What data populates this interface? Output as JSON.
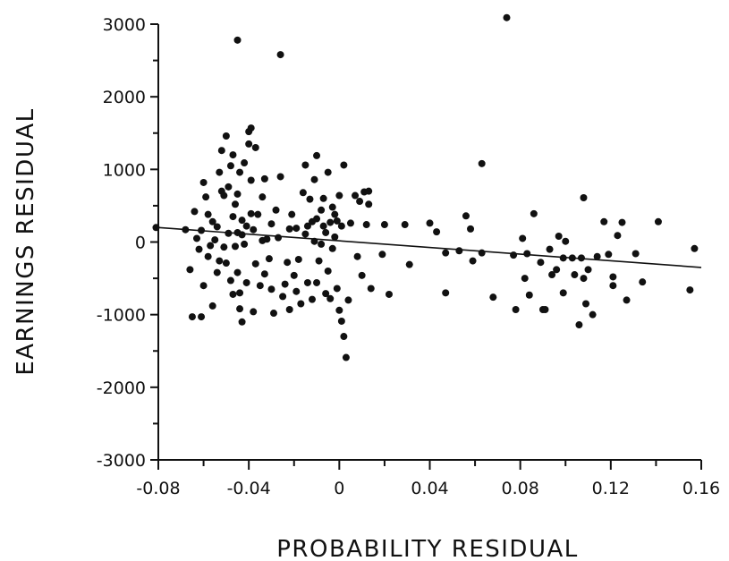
{
  "chart_data": {
    "type": "scatter",
    "title": "",
    "xlabel": "PROBABILITY RESIDUAL",
    "ylabel": "EARNINGS RESIDUAL",
    "xlim": [
      -0.08,
      0.16
    ],
    "ylim": [
      -3000,
      3000
    ],
    "xticks": [
      -0.08,
      -0.04,
      0,
      0.04,
      0.08,
      0.12,
      0.16
    ],
    "xtick_labels": [
      "-0.08",
      "-0.04",
      "0",
      "0.04",
      "0.08",
      "0.12",
      "0.16"
    ],
    "yticks": [
      -3000,
      -2000,
      -1000,
      0,
      1000,
      2000,
      3000
    ],
    "ytick_labels": [
      "-3000",
      "-2000",
      "-1000",
      "0",
      "1000",
      "2000",
      "3000"
    ],
    "grid": false,
    "colors": {
      "points": "#111111",
      "axes": "#111111",
      "fit_line": "#111111"
    },
    "fit_line": {
      "x": [
        -0.08,
        0.16
      ],
      "y": [
        200,
        -350
      ]
    },
    "points": [
      [
        -0.081,
        200
      ],
      [
        -0.068,
        170
      ],
      [
        -0.065,
        -1030
      ],
      [
        -0.061,
        -1030
      ],
      [
        -0.066,
        -380
      ],
      [
        -0.064,
        420
      ],
      [
        -0.063,
        50
      ],
      [
        -0.062,
        -100
      ],
      [
        -0.061,
        160
      ],
      [
        -0.06,
        820
      ],
      [
        -0.06,
        -600
      ],
      [
        -0.059,
        620
      ],
      [
        -0.058,
        -200
      ],
      [
        -0.058,
        380
      ],
      [
        -0.057,
        -50
      ],
      [
        -0.056,
        280
      ],
      [
        -0.056,
        -880
      ],
      [
        -0.055,
        30
      ],
      [
        -0.054,
        -420
      ],
      [
        -0.054,
        210
      ],
      [
        -0.053,
        960
      ],
      [
        -0.053,
        -260
      ],
      [
        -0.052,
        1260
      ],
      [
        -0.052,
        700
      ],
      [
        -0.051,
        -70
      ],
      [
        -0.051,
        640
      ],
      [
        -0.05,
        1460
      ],
      [
        -0.05,
        -290
      ],
      [
        -0.049,
        120
      ],
      [
        -0.049,
        760
      ],
      [
        -0.048,
        1050
      ],
      [
        -0.048,
        -530
      ],
      [
        -0.047,
        1200
      ],
      [
        -0.047,
        350
      ],
      [
        -0.047,
        -720
      ],
      [
        -0.046,
        520
      ],
      [
        -0.046,
        -60
      ],
      [
        -0.045,
        660
      ],
      [
        -0.045,
        -420
      ],
      [
        -0.045,
        130
      ],
      [
        -0.044,
        960
      ],
      [
        -0.044,
        -700
      ],
      [
        -0.044,
        -920
      ],
      [
        -0.043,
        300
      ],
      [
        -0.043,
        -1100
      ],
      [
        -0.043,
        100
      ],
      [
        -0.042,
        1090
      ],
      [
        -0.042,
        -30
      ],
      [
        -0.041,
        -560
      ],
      [
        -0.041,
        220
      ],
      [
        -0.045,
        2780
      ],
      [
        -0.04,
        1520
      ],
      [
        -0.04,
        1350
      ],
      [
        -0.039,
        1570
      ],
      [
        -0.039,
        850
      ],
      [
        -0.039,
        390
      ],
      [
        -0.038,
        -960
      ],
      [
        -0.038,
        170
      ],
      [
        -0.037,
        1300
      ],
      [
        -0.037,
        -300
      ],
      [
        -0.036,
        380
      ],
      [
        -0.035,
        -600
      ],
      [
        -0.034,
        20
      ],
      [
        -0.034,
        620
      ],
      [
        -0.033,
        -440
      ],
      [
        -0.033,
        870
      ],
      [
        -0.032,
        40
      ],
      [
        -0.031,
        -230
      ],
      [
        -0.03,
        -650
      ],
      [
        -0.03,
        250
      ],
      [
        -0.029,
        -980
      ],
      [
        -0.028,
        440
      ],
      [
        -0.027,
        60
      ],
      [
        -0.026,
        2580
      ],
      [
        -0.026,
        900
      ],
      [
        -0.025,
        -750
      ],
      [
        -0.024,
        -580
      ],
      [
        -0.023,
        -280
      ],
      [
        -0.022,
        180
      ],
      [
        -0.022,
        -930
      ],
      [
        -0.021,
        380
      ],
      [
        -0.02,
        -460
      ],
      [
        -0.019,
        -680
      ],
      [
        -0.019,
        190
      ],
      [
        -0.018,
        -240
      ],
      [
        -0.017,
        -850
      ],
      [
        -0.016,
        680
      ],
      [
        -0.015,
        1060
      ],
      [
        -0.015,
        110
      ],
      [
        -0.014,
        220
      ],
      [
        -0.014,
        -560
      ],
      [
        -0.013,
        590
      ],
      [
        -0.012,
        280
      ],
      [
        -0.012,
        -790
      ],
      [
        -0.011,
        860
      ],
      [
        -0.011,
        10
      ],
      [
        -0.01,
        1190
      ],
      [
        -0.01,
        320
      ],
      [
        -0.01,
        -560
      ],
      [
        -0.009,
        -260
      ],
      [
        -0.008,
        440
      ],
      [
        -0.008,
        -30
      ],
      [
        -0.007,
        220
      ],
      [
        -0.007,
        600
      ],
      [
        -0.006,
        -710
      ],
      [
        -0.006,
        130
      ],
      [
        -0.005,
        -400
      ],
      [
        -0.005,
        960
      ],
      [
        -0.004,
        270
      ],
      [
        -0.004,
        -780
      ],
      [
        -0.003,
        480
      ],
      [
        -0.003,
        -90
      ],
      [
        -0.002,
        70
      ],
      [
        -0.002,
        380
      ],
      [
        -0.001,
        -640
      ],
      [
        -0.001,
        290
      ],
      [
        0.0,
        640
      ],
      [
        0.0,
        -940
      ],
      [
        0.001,
        220
      ],
      [
        0.001,
        -1090
      ],
      [
        0.002,
        1060
      ],
      [
        0.002,
        -1300
      ],
      [
        0.003,
        -1590
      ],
      [
        0.004,
        -800
      ],
      [
        0.005,
        260
      ],
      [
        0.007,
        640
      ],
      [
        0.008,
        -200
      ],
      [
        0.009,
        560
      ],
      [
        0.01,
        -460
      ],
      [
        0.011,
        690
      ],
      [
        0.012,
        240
      ],
      [
        0.013,
        520
      ],
      [
        0.013,
        700
      ],
      [
        0.014,
        -640
      ],
      [
        0.019,
        -170
      ],
      [
        0.02,
        240
      ],
      [
        0.022,
        -720
      ],
      [
        0.029,
        240
      ],
      [
        0.031,
        -310
      ],
      [
        0.04,
        260
      ],
      [
        0.043,
        140
      ],
      [
        0.047,
        -700
      ],
      [
        0.047,
        -150
      ],
      [
        0.053,
        -120
      ],
      [
        0.056,
        360
      ],
      [
        0.058,
        180
      ],
      [
        0.059,
        -260
      ],
      [
        0.063,
        1080
      ],
      [
        0.063,
        -150
      ],
      [
        0.068,
        -760
      ],
      [
        0.074,
        3090
      ],
      [
        0.077,
        -180
      ],
      [
        0.078,
        -930
      ],
      [
        0.081,
        50
      ],
      [
        0.082,
        -500
      ],
      [
        0.083,
        -160
      ],
      [
        0.084,
        -730
      ],
      [
        0.086,
        390
      ],
      [
        0.089,
        -280
      ],
      [
        0.09,
        -930
      ],
      [
        0.091,
        -930
      ],
      [
        0.093,
        -100
      ],
      [
        0.094,
        -450
      ],
      [
        0.096,
        -380
      ],
      [
        0.097,
        80
      ],
      [
        0.099,
        -220
      ],
      [
        0.099,
        -700
      ],
      [
        0.1,
        10
      ],
      [
        0.103,
        -220
      ],
      [
        0.104,
        -450
      ],
      [
        0.106,
        -1140
      ],
      [
        0.107,
        -220
      ],
      [
        0.108,
        610
      ],
      [
        0.108,
        -500
      ],
      [
        0.109,
        -850
      ],
      [
        0.11,
        -380
      ],
      [
        0.112,
        -1000
      ],
      [
        0.114,
        -200
      ],
      [
        0.117,
        280
      ],
      [
        0.119,
        -170
      ],
      [
        0.121,
        -480
      ],
      [
        0.121,
        -600
      ],
      [
        0.123,
        90
      ],
      [
        0.125,
        270
      ],
      [
        0.127,
        -800
      ],
      [
        0.131,
        -160
      ],
      [
        0.134,
        -550
      ],
      [
        0.141,
        280
      ],
      [
        0.155,
        -660
      ],
      [
        0.157,
        -90
      ]
    ]
  }
}
